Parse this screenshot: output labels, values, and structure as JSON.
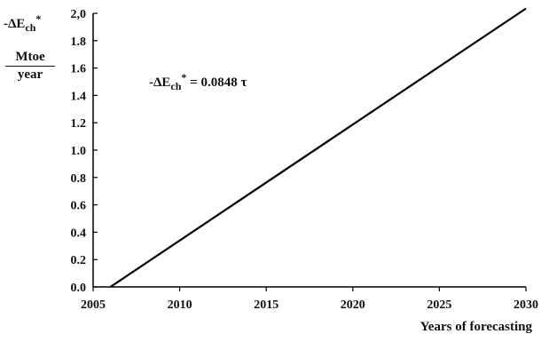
{
  "chart_data": {
    "type": "line",
    "x_min": 2005,
    "x_max": 2030,
    "y_min": 0.0,
    "y_max": 2.0,
    "x_ticks": [
      "2005",
      "2010",
      "2015",
      "2020",
      "2025",
      "2030"
    ],
    "y_ticks": [
      "0.0",
      "0.2",
      "0.4",
      "0.6",
      "0.8",
      "1.0",
      "1.2",
      "1.4",
      "1.6",
      "1.8",
      "2,0"
    ],
    "series": [
      {
        "x": [
          2006,
          2030
        ],
        "y": [
          0.0,
          2.035
        ]
      }
    ],
    "ylabel_top": {
      "prefix": "-ΔE",
      "sub": "ch",
      "sup": "*"
    },
    "ylabel_unit_numerator": "Mtoe",
    "ylabel_unit_denominator": "year",
    "xlabel": "Years of forecasting",
    "annotation": {
      "prefix": "-ΔE",
      "sub": "ch",
      "sup": "*",
      "rest": " = 0.0848 τ"
    },
    "grid": false,
    "colors": {
      "line": "#000000",
      "axis": "#000000",
      "text": "#111111"
    }
  }
}
